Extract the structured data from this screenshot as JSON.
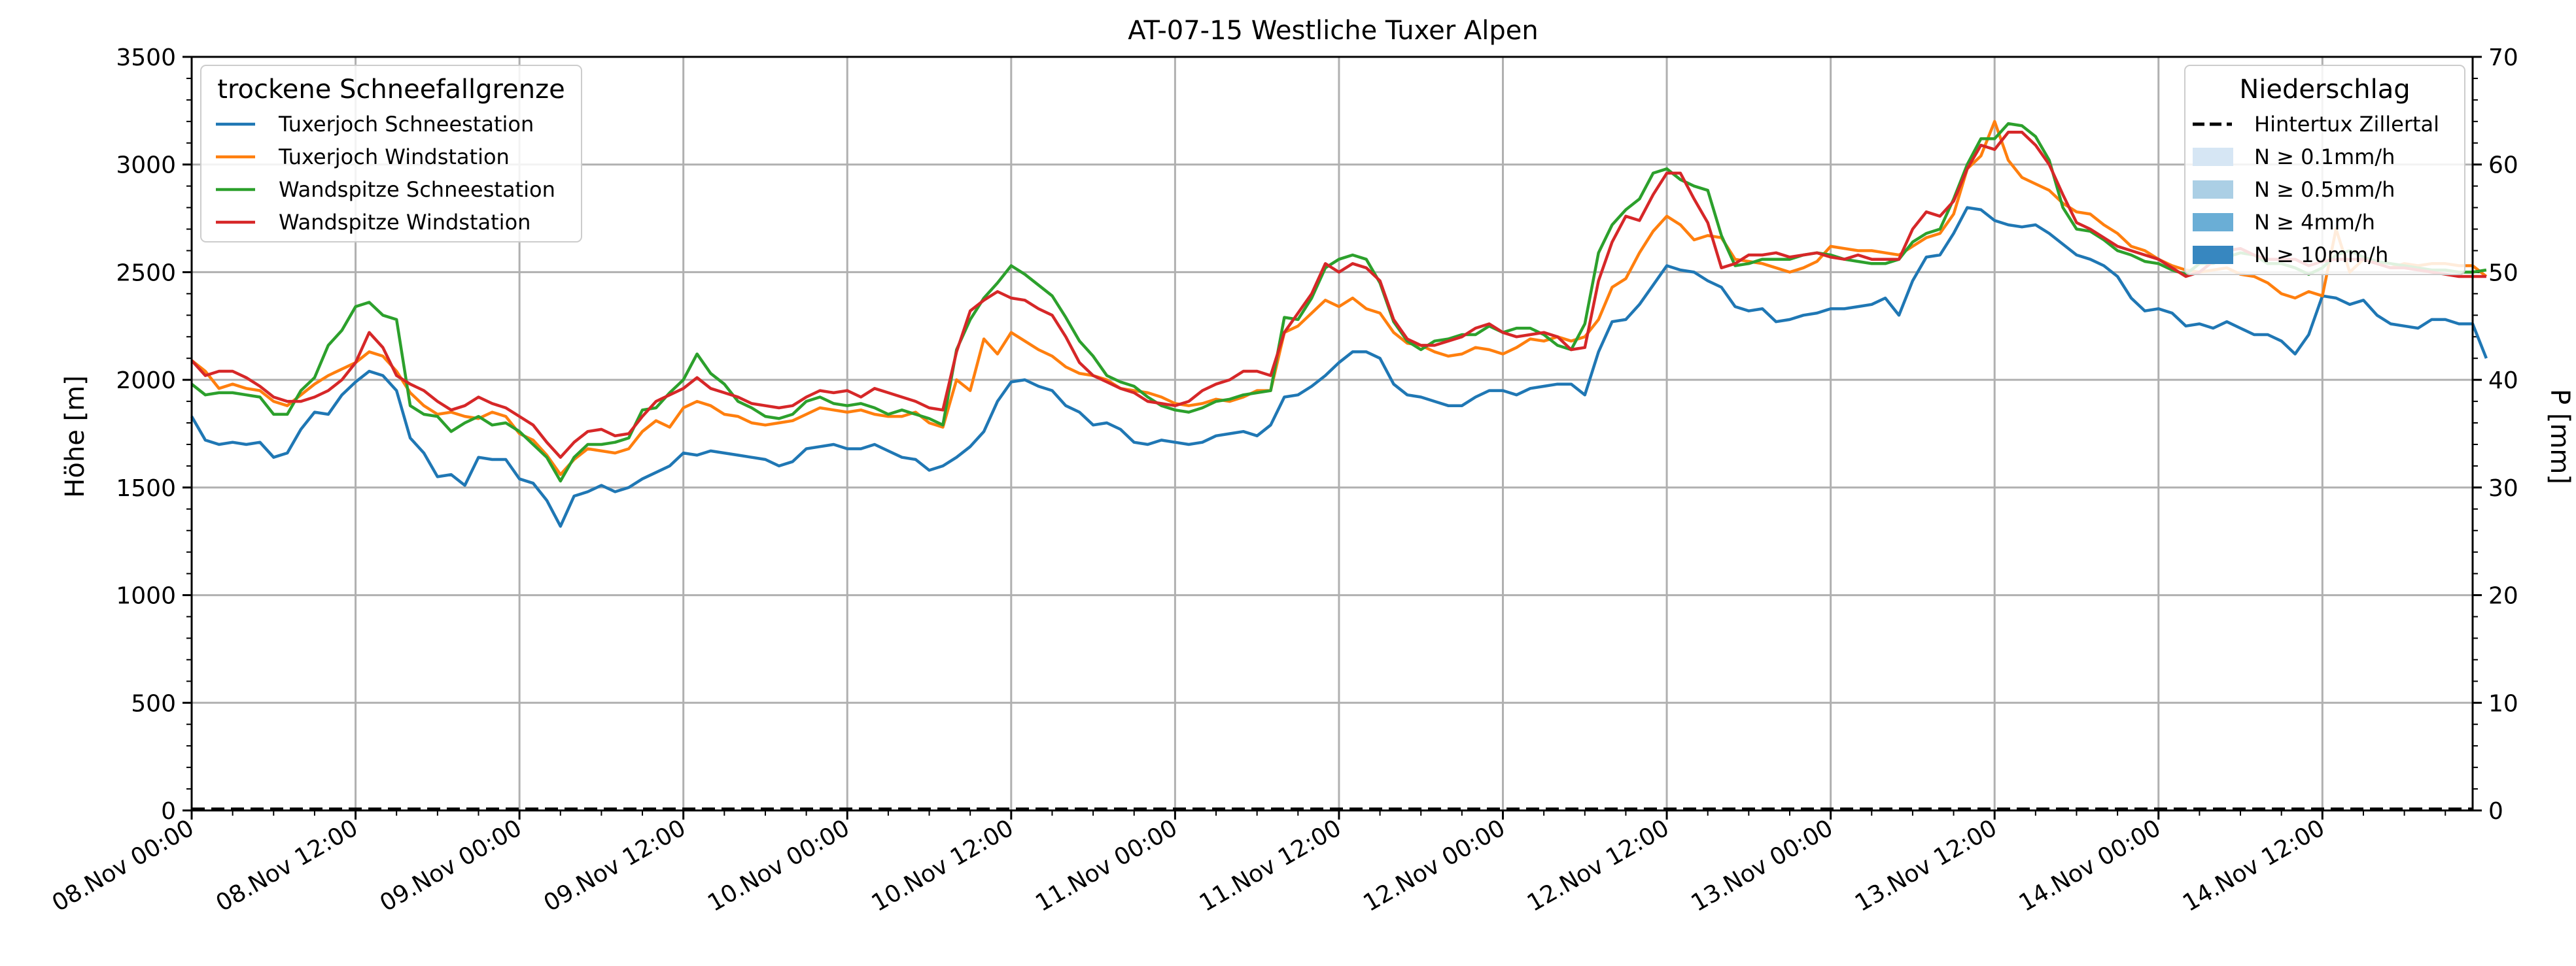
{
  "chart_data": {
    "type": "line",
    "title": "AT-07-15 Westliche Tuxer Alpen",
    "ylabel": "Höhe [m]",
    "y2label": "P [mm]",
    "ylim": [
      0,
      3500
    ],
    "y2lim": [
      0,
      70
    ],
    "yticks": [
      "0",
      "500",
      "1000",
      "1500",
      "2000",
      "2500",
      "3000",
      "3500"
    ],
    "y2ticks": [
      "0",
      "10",
      "20",
      "30",
      "40",
      "50",
      "60",
      "70"
    ],
    "xticks": [
      "08.Nov 00:00",
      "08.Nov 12:00",
      "09.Nov 00:00",
      "09.Nov 12:00",
      "10.Nov 00:00",
      "10.Nov 12:00",
      "11.Nov 00:00",
      "11.Nov 12:00",
      "12.Nov 00:00",
      "12.Nov 12:00",
      "13.Nov 00:00",
      "13.Nov 12:00",
      "14.Nov 00:00",
      "14.Nov 12:00"
    ],
    "x_range_hours": [
      0,
      167
    ],
    "x_step_hours": 1,
    "grid": true,
    "legend_left": {
      "title": "trockene Schneefallgrenze",
      "placement": "top-left"
    },
    "legend_right": {
      "title": "Niederschlag",
      "placement": "top-right",
      "entries": [
        {
          "label": "Hintertux Zillertal",
          "style": "dashed",
          "color": "#000000"
        },
        {
          "label": "N ≥ 0.1mm/h",
          "style": "patch",
          "color": "#d6e6f4"
        },
        {
          "label": "N ≥ 0.5mm/h",
          "style": "patch",
          "color": "#abcfe5"
        },
        {
          "label": "N ≥ 4mm/h",
          "style": "patch",
          "color": "#6aaed6"
        },
        {
          "label": "N ≥ 10mm/h",
          "style": "patch",
          "color": "#3787c0"
        }
      ]
    },
    "precipitation": {
      "name": "Hintertux Zillertal",
      "values_mm": [
        0,
        0
      ]
    },
    "series": [
      {
        "name": "Tuxerjoch Schneestation",
        "color": "#1f77b4",
        "values": [
          1830,
          1720,
          1700,
          1710,
          1700,
          1710,
          1640,
          1660,
          1770,
          1850,
          1840,
          1930,
          1990,
          2040,
          2020,
          1950,
          1730,
          1660,
          1550,
          1560,
          1510,
          1640,
          1630,
          1630,
          1540,
          1520,
          1440,
          1320,
          1460,
          1480,
          1510,
          1480,
          1500,
          1540,
          1570,
          1600,
          1660,
          1650,
          1670,
          1660,
          1650,
          1640,
          1630,
          1600,
          1620,
          1680,
          1690,
          1700,
          1680,
          1680,
          1700,
          1670,
          1640,
          1630,
          1580,
          1600,
          1640,
          1690,
          1760,
          1900,
          1990,
          2000,
          1970,
          1950,
          1880,
          1850,
          1790,
          1800,
          1770,
          1710,
          1700,
          1720,
          1710,
          1700,
          1710,
          1740,
          1750,
          1760,
          1740,
          1790,
          1920,
          1930,
          1970,
          2020,
          2080,
          2130,
          2130,
          2100,
          1980,
          1930,
          1920,
          1900,
          1880,
          1880,
          1920,
          1950,
          1950,
          1930,
          1960,
          1970,
          1980,
          1980,
          1930,
          2130,
          2270,
          2280,
          2350,
          2440,
          2530,
          2510,
          2500,
          2460,
          2430,
          2340,
          2320,
          2330,
          2270,
          2280,
          2300,
          2310,
          2330,
          2330,
          2340,
          2350,
          2380,
          2300,
          2460,
          2570,
          2580,
          2680,
          2800,
          2790,
          2740,
          2720,
          2710,
          2720,
          2680,
          2630,
          2580,
          2560,
          2530,
          2480,
          2380,
          2320,
          2330,
          2310,
          2250,
          2260,
          2240,
          2270,
          2240,
          2210,
          2210,
          2180,
          2120,
          2210,
          2390,
          2380,
          2350,
          2370,
          2300,
          2260,
          2250,
          2240,
          2280,
          2280,
          2260,
          2260,
          2100
        ]
      },
      {
        "name": "Tuxerjoch Windstation",
        "color": "#ff7f0e",
        "values": [
          2090,
          2040,
          1960,
          1980,
          1960,
          1950,
          1900,
          1880,
          1930,
          1980,
          2020,
          2050,
          2080,
          2130,
          2110,
          2040,
          1940,
          1880,
          1840,
          1850,
          1830,
          1820,
          1850,
          1830,
          1750,
          1720,
          1650,
          1560,
          1630,
          1680,
          1670,
          1660,
          1680,
          1760,
          1810,
          1780,
          1870,
          1900,
          1880,
          1840,
          1830,
          1800,
          1790,
          1800,
          1810,
          1840,
          1870,
          1860,
          1850,
          1860,
          1840,
          1830,
          1830,
          1850,
          1800,
          1780,
          2000,
          1950,
          2190,
          2120,
          2220,
          2180,
          2140,
          2110,
          2060,
          2030,
          2020,
          2000,
          1960,
          1950,
          1940,
          1920,
          1890,
          1880,
          1890,
          1910,
          1900,
          1920,
          1950,
          1950,
          2220,
          2250,
          2310,
          2370,
          2340,
          2380,
          2330,
          2310,
          2220,
          2170,
          2160,
          2130,
          2110,
          2120,
          2150,
          2140,
          2120,
          2150,
          2190,
          2180,
          2200,
          2180,
          2200,
          2280,
          2430,
          2470,
          2590,
          2690,
          2760,
          2720,
          2650,
          2670,
          2660,
          2560,
          2550,
          2540,
          2520,
          2500,
          2520,
          2550,
          2620,
          2610,
          2600,
          2600,
          2590,
          2580,
          2620,
          2660,
          2680,
          2770,
          2980,
          3040,
          3200,
          3020,
          2940,
          2910,
          2880,
          2820,
          2780,
          2770,
          2720,
          2680,
          2620,
          2600,
          2560,
          2530,
          2510,
          2500,
          2510,
          2520,
          2490,
          2480,
          2450,
          2400,
          2380,
          2410,
          2390,
          2700,
          2500,
          2560,
          2540,
          2520,
          2540,
          2530,
          2540,
          2540,
          2530,
          2530,
          2480
        ]
      },
      {
        "name": "Wandspitze Schneestation",
        "color": "#2ca02c",
        "values": [
          1980,
          1930,
          1940,
          1940,
          1930,
          1920,
          1840,
          1840,
          1950,
          2010,
          2160,
          2230,
          2340,
          2360,
          2300,
          2280,
          1880,
          1840,
          1830,
          1760,
          1800,
          1830,
          1790,
          1800,
          1760,
          1700,
          1640,
          1530,
          1640,
          1700,
          1700,
          1710,
          1730,
          1860,
          1870,
          1940,
          2000,
          2120,
          2030,
          1980,
          1900,
          1870,
          1830,
          1820,
          1840,
          1900,
          1920,
          1890,
          1880,
          1890,
          1870,
          1840,
          1860,
          1840,
          1820,
          1790,
          2140,
          2280,
          2380,
          2450,
          2530,
          2490,
          2440,
          2390,
          2290,
          2180,
          2110,
          2020,
          1990,
          1970,
          1920,
          1880,
          1860,
          1850,
          1870,
          1900,
          1910,
          1930,
          1940,
          1950,
          2290,
          2280,
          2380,
          2520,
          2560,
          2580,
          2560,
          2450,
          2270,
          2180,
          2140,
          2180,
          2190,
          2210,
          2210,
          2250,
          2220,
          2240,
          2240,
          2210,
          2160,
          2140,
          2260,
          2590,
          2720,
          2790,
          2840,
          2960,
          2980,
          2930,
          2900,
          2880,
          2670,
          2530,
          2540,
          2560,
          2560,
          2560,
          2580,
          2590,
          2580,
          2560,
          2550,
          2540,
          2540,
          2560,
          2640,
          2680,
          2700,
          2840,
          3000,
          3120,
          3120,
          3190,
          3180,
          3130,
          3020,
          2800,
          2700,
          2690,
          2650,
          2600,
          2580,
          2550,
          2540,
          2510,
          2490,
          2540,
          2540,
          2570,
          2590,
          2580,
          2540,
          2540,
          2520,
          2490,
          2520,
          2580,
          2600,
          2570,
          2550,
          2540,
          2530,
          2520,
          2510,
          2510,
          2500,
          2500,
          2510
        ]
      },
      {
        "name": "Wandspitze Windstation",
        "color": "#d62728",
        "values": [
          2090,
          2020,
          2040,
          2040,
          2010,
          1970,
          1920,
          1900,
          1900,
          1920,
          1950,
          2000,
          2080,
          2220,
          2150,
          2020,
          1980,
          1950,
          1900,
          1860,
          1880,
          1920,
          1890,
          1870,
          1830,
          1790,
          1710,
          1640,
          1710,
          1760,
          1770,
          1740,
          1750,
          1830,
          1900,
          1930,
          1960,
          2010,
          1960,
          1940,
          1920,
          1890,
          1880,
          1870,
          1880,
          1920,
          1950,
          1940,
          1950,
          1920,
          1960,
          1940,
          1920,
          1900,
          1870,
          1860,
          2130,
          2320,
          2370,
          2410,
          2380,
          2370,
          2330,
          2300,
          2200,
          2080,
          2020,
          1990,
          1960,
          1940,
          1900,
          1890,
          1880,
          1900,
          1950,
          1980,
          2000,
          2040,
          2040,
          2020,
          2220,
          2310,
          2400,
          2540,
          2500,
          2540,
          2520,
          2460,
          2280,
          2190,
          2160,
          2160,
          2180,
          2200,
          2240,
          2260,
          2220,
          2200,
          2210,
          2220,
          2200,
          2140,
          2150,
          2460,
          2640,
          2760,
          2740,
          2860,
          2960,
          2960,
          2840,
          2730,
          2520,
          2540,
          2580,
          2580,
          2590,
          2570,
          2580,
          2590,
          2570,
          2560,
          2580,
          2560,
          2560,
          2560,
          2700,
          2780,
          2760,
          2830,
          2980,
          3090,
          3070,
          3150,
          3150,
          3090,
          3000,
          2860,
          2730,
          2700,
          2660,
          2620,
          2600,
          2580,
          2560,
          2520,
          2480,
          2500,
          2550,
          2600,
          2610,
          2580,
          2560,
          2560,
          2560,
          2530,
          2550,
          2560,
          2560,
          2560,
          2540,
          2520,
          2520,
          2510,
          2500,
          2490,
          2480,
          2480,
          2480
        ]
      }
    ]
  }
}
